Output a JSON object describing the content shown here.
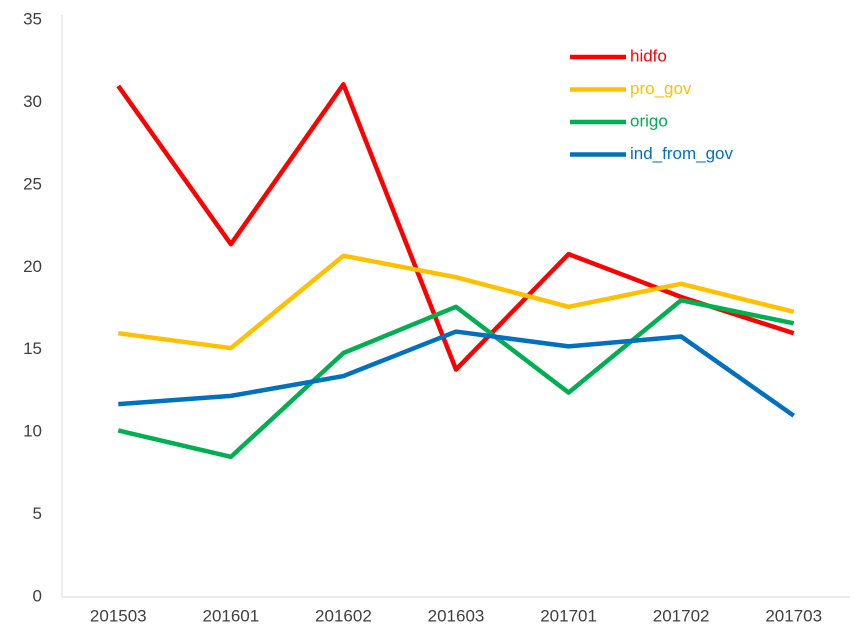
{
  "chart_data": {
    "type": "line",
    "categories": [
      "201503",
      "201601",
      "201602",
      "201603",
      "201701",
      "201702",
      "201703"
    ],
    "series": [
      {
        "name": "hidfo",
        "color": "#ff0000",
        "values": [
          31.0,
          21.4,
          31.1,
          13.8,
          20.8,
          18.2,
          16.0
        ]
      },
      {
        "name": "pro_gov",
        "color": "#ffc000",
        "values": [
          16.0,
          15.1,
          20.7,
          19.4,
          17.6,
          19.0,
          17.3
        ]
      },
      {
        "name": "origo",
        "color": "#00b050",
        "values": [
          10.1,
          8.5,
          14.8,
          17.6,
          12.4,
          18.0,
          16.6
        ]
      },
      {
        "name": "ind_from_gov",
        "color": "#0070c0",
        "values": [
          11.7,
          12.2,
          13.4,
          16.1,
          15.2,
          15.8,
          11.0
        ]
      }
    ],
    "ylim": [
      0,
      35
    ],
    "yticks": [
      0,
      5,
      10,
      15,
      20,
      25,
      30,
      35
    ],
    "grid": false,
    "legend": "top-right"
  }
}
